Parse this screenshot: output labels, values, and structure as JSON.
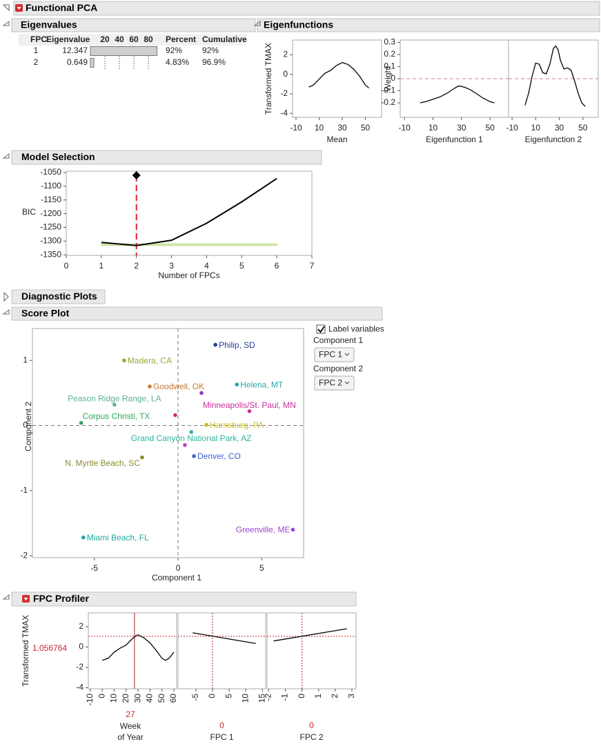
{
  "title": "Functional PCA",
  "eigenvalues": {
    "title": "Eigenvalues",
    "columns": [
      "FPC",
      "Eigenvalue",
      "Percent",
      "Cumulative"
    ],
    "fpc": [
      "1",
      "2"
    ],
    "eigenvalue": [
      12.347,
      0.649
    ],
    "percent": [
      92,
      4.83
    ],
    "percent_labels": [
      "92%",
      "4.83%"
    ],
    "cumulative": [
      "92%",
      "96.9%"
    ],
    "bar_xlim": [
      0,
      100
    ],
    "bar_xticks": [
      20,
      40,
      60,
      80
    ]
  },
  "eigenfunctions": {
    "title": "Eigenfunctions",
    "plots": [
      {
        "type": "line",
        "ylabel": "Transformed TMAX",
        "xlabel": "Mean",
        "xlim": [
          -13,
          64
        ],
        "xticks": [
          -10,
          10,
          30,
          50
        ],
        "ylim": [
          -4.4,
          3.5
        ],
        "yticks": [
          -4,
          -2,
          0,
          2
        ],
        "x": [
          1,
          5,
          10,
          15,
          20,
          25,
          30,
          35,
          40,
          45,
          50,
          53
        ],
        "values": [
          -1.3,
          -1.1,
          -0.5,
          0.1,
          0.4,
          0.9,
          1.2,
          1.0,
          0.5,
          -0.2,
          -1.1,
          -1.4
        ]
      },
      {
        "type": "line",
        "ylabel": "Weight",
        "xlabel": "Eigenfunction 1",
        "xlim": [
          -13,
          63
        ],
        "xticks": [
          -10,
          10,
          30,
          50
        ],
        "ylim": [
          -0.32,
          0.32
        ],
        "yticks": [
          -0.2,
          -0.1,
          0,
          0.1,
          0.2,
          0.3
        ],
        "x": [
          1,
          5,
          10,
          15,
          20,
          25,
          28,
          32,
          36,
          40,
          45,
          50,
          53
        ],
        "values": [
          -0.2,
          -0.19,
          -0.17,
          -0.15,
          -0.12,
          -0.08,
          -0.06,
          -0.07,
          -0.09,
          -0.12,
          -0.16,
          -0.19,
          -0.2
        ]
      },
      {
        "type": "line",
        "xlabel": "Eigenfunction 2",
        "xlim": [
          -13,
          63
        ],
        "xticks": [
          -10,
          10,
          30,
          50
        ],
        "ylim": [
          -0.32,
          0.32
        ],
        "x": [
          1,
          4,
          7,
          10,
          13,
          16,
          19,
          22,
          25,
          27,
          29,
          31,
          34,
          37,
          40,
          43,
          46,
          49,
          52
        ],
        "values": [
          -0.22,
          -0.12,
          0.02,
          0.13,
          0.12,
          0.05,
          0.04,
          0.12,
          0.25,
          0.27,
          0.24,
          0.15,
          0.08,
          0.09,
          0.07,
          -0.02,
          -0.12,
          -0.2,
          -0.23
        ]
      }
    ]
  },
  "model_selection": {
    "type": "line",
    "title": "Model Selection",
    "ylabel": "BIC",
    "xlabel": "Number of FPCs",
    "xlim": [
      0,
      7
    ],
    "xticks": [
      0,
      1,
      2,
      3,
      4,
      5,
      6,
      7
    ],
    "ylim": [
      -1352,
      -1045
    ],
    "yticks": [
      -1350,
      -1300,
      -1250,
      -1200,
      -1150,
      -1100,
      -1050
    ],
    "x": [
      1,
      2,
      3,
      4,
      5,
      6
    ],
    "values": [
      -1305,
      -1316,
      -1297,
      -1235,
      -1157,
      -1072
    ],
    "selected": 2,
    "band": [
      -1316,
      -1310
    ]
  },
  "diagnostic_plots": {
    "title": "Diagnostic Plots"
  },
  "score_plot": {
    "type": "scatter",
    "title": "Score Plot",
    "xlabel": "Component 1",
    "ylabel": "Component 2",
    "xlim": [
      -8.7,
      7.5
    ],
    "xticks": [
      -5,
      0,
      5
    ],
    "ylim": [
      -2.03,
      1.49
    ],
    "yticks": [
      -2,
      -1,
      0,
      1
    ],
    "points": [
      {
        "name": "Philip, SD",
        "x": 2.23,
        "y": 1.24,
        "color": "#213f91"
      },
      {
        "name": "Madera, CA",
        "x": -3.22,
        "y": 1.0,
        "color": "#98a935"
      },
      {
        "name": "Goodwell, OK",
        "x": -1.69,
        "y": 0.6,
        "color": "#c97a2d"
      },
      {
        "name": "Helena, MT",
        "x": 3.51,
        "y": 0.63,
        "color": "#27a9ac"
      },
      {
        "name": null,
        "x": 1.4,
        "y": 0.5,
        "color": "#8a3cc0"
      },
      {
        "name": "Minneapolis/St. Paul, MN",
        "x": 4.26,
        "y": 0.22,
        "color": "#c92e98"
      },
      {
        "name": "Peason Ridge Range, LA",
        "x": -3.8,
        "y": 0.32,
        "color": "#5bb58a"
      },
      {
        "name": "Corpus Christi, TX",
        "x": -5.79,
        "y": 0.04,
        "color": "#2ea85a"
      },
      {
        "name": "Harrisburg, PA",
        "x": 1.69,
        "y": 0.01,
        "color": "#c9ba2c"
      },
      {
        "name": "Grand Canyon National Park, AZ",
        "x": 0.79,
        "y": -0.1,
        "color": "#2bb39e"
      },
      {
        "name": null,
        "x": -0.17,
        "y": 0.16,
        "color": "#d0304a"
      },
      {
        "name": null,
        "x": 0.41,
        "y": -0.3,
        "color": "#c040c0"
      },
      {
        "name": "N. Myrtle Beach, SC",
        "x": -2.15,
        "y": -0.49,
        "color": "#8a8a30"
      },
      {
        "name": "Denver, CO",
        "x": 0.95,
        "y": -0.47,
        "color": "#4060d0"
      },
      {
        "name": "Miami Beach, FL",
        "x": -5.66,
        "y": -1.72,
        "color": "#20a8a0"
      },
      {
        "name": "Greenville, ME",
        "x": 6.86,
        "y": -1.6,
        "color": "#a040d0"
      }
    ],
    "controls": {
      "checkbox": "Label variables",
      "component1_label": "Component 1",
      "component1": "FPC 1",
      "component2_label": "Component 2",
      "component2": "FPC 2"
    }
  },
  "profiler": {
    "title": "FPC Profiler",
    "ylabel": "Transformed TMAX",
    "ylim": [
      -4.1,
      3.36
    ],
    "yticks": [
      -4,
      -2,
      0,
      2
    ],
    "current_y": 1.056764,
    "panels": [
      {
        "type": "line",
        "xlabel": [
          "Week",
          "of Year"
        ],
        "current_x": 27,
        "xlim": [
          -11.7,
          62.3
        ],
        "xticks": [
          -10,
          0,
          10,
          20,
          30,
          40,
          50,
          60
        ],
        "x": [
          0,
          5,
          10,
          15,
          20,
          25,
          28,
          30,
          35,
          40,
          45,
          50,
          53,
          56,
          60
        ],
        "values": [
          -1.3,
          -1.1,
          -0.5,
          -0.1,
          0.2,
          0.8,
          1.1,
          1.2,
          0.9,
          0.4,
          -0.3,
          -1.1,
          -1.3,
          -1.1,
          -0.5
        ]
      },
      {
        "type": "line",
        "xlabel": [
          "FPC 1"
        ],
        "current_x": 0,
        "xlim": [
          -10.4,
          16
        ],
        "xticks": [
          -5,
          0,
          5,
          10,
          15
        ],
        "x": [
          -6,
          13
        ],
        "values": [
          1.4,
          0.35
        ]
      },
      {
        "type": "line",
        "xlabel": [
          "FPC 2"
        ],
        "current_x": 0,
        "xlim": [
          -2.1,
          3.25
        ],
        "xticks": [
          -2,
          -1,
          0,
          1,
          2,
          3
        ],
        "x": [
          -1.7,
          2.7
        ],
        "values": [
          0.6,
          1.8
        ]
      }
    ]
  }
}
